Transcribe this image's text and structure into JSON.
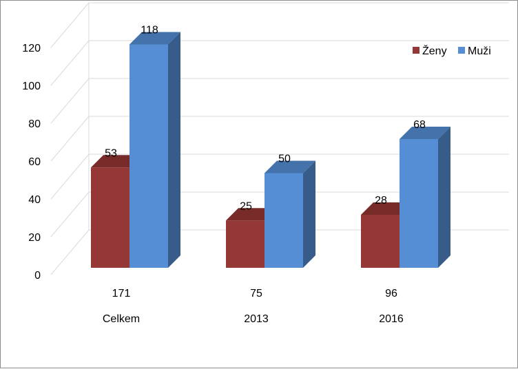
{
  "chart_data": {
    "type": "bar",
    "title": "",
    "xlabel": "",
    "ylabel": "",
    "ylim": [
      0,
      120
    ],
    "y_ticks": [
      0,
      20,
      40,
      60,
      80,
      100,
      120
    ],
    "grid": true,
    "three_d": true,
    "legend_position": "top-right",
    "categories": [
      {
        "total": "171",
        "label": "Celkem"
      },
      {
        "total": "75",
        "label": "2013"
      },
      {
        "total": "96",
        "label": "2016"
      }
    ],
    "series": [
      {
        "name": "Ženy",
        "values": [
          53,
          25,
          28
        ],
        "color": "#953735"
      },
      {
        "name": "Muži",
        "values": [
          118,
          50,
          68
        ],
        "color": "#558ed5"
      }
    ]
  }
}
